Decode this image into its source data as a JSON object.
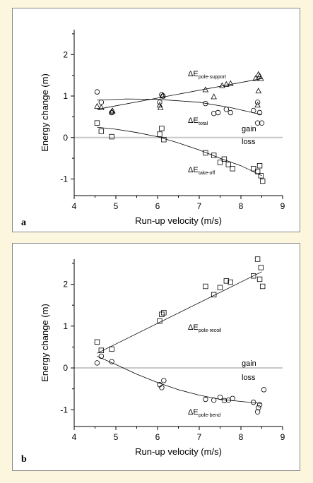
{
  "chart_data": [
    {
      "type": "scatter",
      "panel_label": "a",
      "xlabel": "Run-up velocity (m/s)",
      "ylabel": "Energy change (m)",
      "xlim": [
        4,
        9
      ],
      "ylim": [
        -1.4,
        2.6
      ],
      "xticks": [
        4,
        5,
        6,
        7,
        8,
        9
      ],
      "yticks": [
        -1,
        0,
        1,
        2
      ],
      "zero_line_labels": {
        "above": "gain",
        "below": "loss"
      },
      "series": [
        {
          "name_symbol": "ΔE",
          "name_subscript": "pole-support",
          "marker": "triangle",
          "points": [
            [
              4.55,
              0.75
            ],
            [
              4.65,
              0.72
            ],
            [
              4.9,
              0.62
            ],
            [
              4.92,
              0.64
            ],
            [
              6.05,
              0.78
            ],
            [
              6.07,
              0.72
            ],
            [
              6.12,
              1.0
            ],
            [
              7.15,
              1.15
            ],
            [
              7.35,
              0.98
            ],
            [
              7.55,
              1.25
            ],
            [
              7.65,
              1.28
            ],
            [
              7.75,
              1.3
            ],
            [
              8.35,
              1.42
            ],
            [
              8.42,
              1.52
            ],
            [
              8.45,
              1.48
            ],
            [
              8.48,
              1.42
            ],
            [
              8.42,
              1.12
            ],
            [
              8.4,
              0.78
            ]
          ],
          "fit": [
            [
              4.55,
              0.68
            ],
            [
              8.5,
              1.42
            ]
          ]
        },
        {
          "name_symbol": "ΔE",
          "name_subscript": "total",
          "marker": "circle",
          "points": [
            [
              4.55,
              1.1
            ],
            [
              4.65,
              0.85
            ],
            [
              4.9,
              0.6
            ],
            [
              6.05,
              0.85
            ],
            [
              6.1,
              1.03
            ],
            [
              6.13,
              1.0
            ],
            [
              7.15,
              0.82
            ],
            [
              7.35,
              0.58
            ],
            [
              7.45,
              0.6
            ],
            [
              7.65,
              0.68
            ],
            [
              7.75,
              0.6
            ],
            [
              8.3,
              0.65
            ],
            [
              8.4,
              0.85
            ],
            [
              8.45,
              0.6
            ],
            [
              8.4,
              0.35
            ],
            [
              8.5,
              0.35
            ]
          ],
          "fit": [
            [
              4.55,
              0.9
            ],
            [
              5.25,
              0.93
            ],
            [
              6.0,
              0.92
            ],
            [
              7.0,
              0.85
            ],
            [
              7.75,
              0.72
            ],
            [
              8.5,
              0.55
            ]
          ]
        },
        {
          "name_symbol": "ΔE",
          "name_subscript": "take-off",
          "marker": "square",
          "points": [
            [
              4.55,
              0.35
            ],
            [
              4.65,
              0.15
            ],
            [
              4.9,
              0.02
            ],
            [
              6.05,
              0.08
            ],
            [
              6.1,
              0.22
            ],
            [
              6.15,
              -0.05
            ],
            [
              7.15,
              -0.37
            ],
            [
              7.35,
              -0.43
            ],
            [
              7.5,
              -0.6
            ],
            [
              7.6,
              -0.52
            ],
            [
              7.7,
              -0.65
            ],
            [
              7.8,
              -0.75
            ],
            [
              8.3,
              -0.75
            ],
            [
              8.4,
              -0.82
            ],
            [
              8.45,
              -0.68
            ],
            [
              8.48,
              -0.92
            ],
            [
              8.52,
              -1.05
            ]
          ],
          "fit": [
            [
              4.55,
              0.25
            ],
            [
              5.0,
              0.2
            ],
            [
              5.5,
              0.12
            ],
            [
              6.0,
              0.02
            ],
            [
              6.5,
              -0.13
            ],
            [
              7.0,
              -0.3
            ],
            [
              7.5,
              -0.5
            ],
            [
              8.0,
              -0.68
            ],
            [
              8.5,
              -0.92
            ]
          ]
        }
      ]
    },
    {
      "type": "scatter",
      "panel_label": "b",
      "xlabel": "Run-up velocity (m/s)",
      "ylabel": "Energy change (m)",
      "xlim": [
        4,
        9
      ],
      "ylim": [
        -1.4,
        2.6
      ],
      "xticks": [
        4,
        5,
        6,
        7,
        8,
        9
      ],
      "yticks": [
        -1,
        0,
        1,
        2
      ],
      "zero_line_labels": {
        "above": "gain",
        "below": "loss"
      },
      "series": [
        {
          "name_symbol": "ΔE",
          "name_subscript": "pole-recoil",
          "marker": "square",
          "points": [
            [
              4.55,
              0.62
            ],
            [
              4.65,
              0.42
            ],
            [
              4.9,
              0.45
            ],
            [
              6.05,
              1.12
            ],
            [
              6.1,
              1.28
            ],
            [
              6.15,
              1.32
            ],
            [
              7.15,
              1.95
            ],
            [
              7.35,
              1.75
            ],
            [
              7.5,
              1.92
            ],
            [
              7.65,
              2.08
            ],
            [
              7.75,
              2.05
            ],
            [
              8.3,
              2.2
            ],
            [
              8.4,
              2.6
            ],
            [
              8.45,
              2.12
            ],
            [
              8.48,
              2.4
            ],
            [
              8.52,
              1.95
            ]
          ],
          "fit": [
            [
              4.55,
              0.35
            ],
            [
              8.5,
              2.3
            ]
          ]
        },
        {
          "name_symbol": "ΔE",
          "name_subscript": "pole-bend",
          "marker": "circle",
          "points": [
            [
              4.55,
              0.12
            ],
            [
              4.65,
              0.28
            ],
            [
              4.9,
              0.15
            ],
            [
              6.05,
              -0.4
            ],
            [
              6.1,
              -0.47
            ],
            [
              6.15,
              -0.3
            ],
            [
              7.15,
              -0.75
            ],
            [
              7.35,
              -0.77
            ],
            [
              7.5,
              -0.7
            ],
            [
              7.6,
              -0.78
            ],
            [
              7.7,
              -0.77
            ],
            [
              7.8,
              -0.73
            ],
            [
              8.3,
              -0.82
            ],
            [
              8.4,
              -1.05
            ],
            [
              8.42,
              -0.95
            ],
            [
              8.45,
              -0.88
            ],
            [
              8.55,
              -0.52
            ]
          ],
          "fit": [
            [
              4.55,
              0.28
            ],
            [
              5.0,
              0.08
            ],
            [
              5.5,
              -0.15
            ],
            [
              6.0,
              -0.35
            ],
            [
              6.5,
              -0.52
            ],
            [
              7.0,
              -0.65
            ],
            [
              7.5,
              -0.75
            ],
            [
              8.0,
              -0.8
            ],
            [
              8.5,
              -0.85
            ]
          ]
        }
      ]
    }
  ]
}
